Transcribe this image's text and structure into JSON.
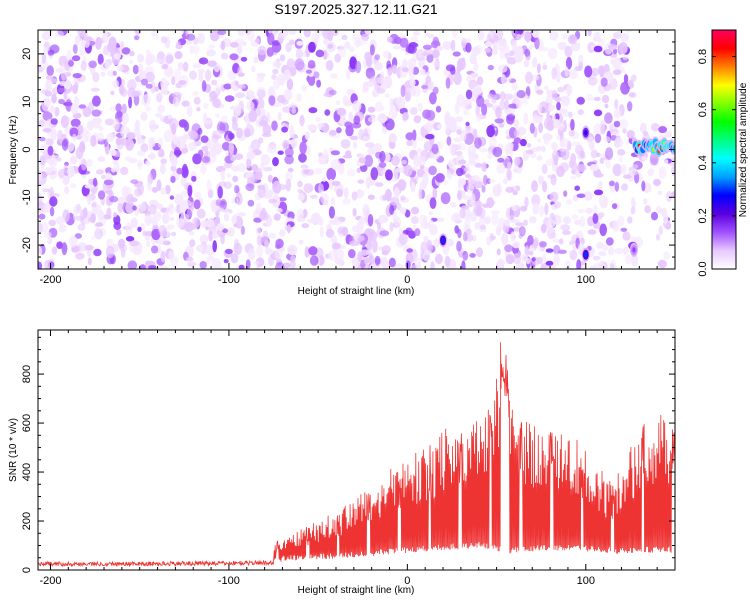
{
  "figure_title": "S197.2025.327.12.11.G21",
  "chart_data": [
    {
      "type": "heatmap",
      "title": "S197.2025.327.12.11.G21",
      "xlabel": "Height of straight line (km)",
      "ylabel": "Frequency (Hz)",
      "xlim": [
        -207,
        150
      ],
      "ylim": [
        -25,
        25
      ],
      "x_ticks": [
        -200,
        -100,
        0,
        100
      ],
      "y_ticks": [
        -20,
        -10,
        0,
        10,
        20
      ],
      "x_tick_labels": [
        "-200",
        "-100",
        "0",
        "100"
      ],
      "y_tick_labels": [
        "-20",
        "-10",
        "0",
        "10",
        "20"
      ],
      "grid": false,
      "colorbar": {
        "label": "Normalized spectral amplitude",
        "range": [
          0.0,
          0.9
        ],
        "ticks": [
          0.0,
          0.2,
          0.4,
          0.6,
          0.8
        ],
        "tick_labels": [
          "0.0",
          "0.2",
          "0.4",
          "0.6",
          "0.8"
        ],
        "colormap": [
          "#ffffff",
          "#e8c8ff",
          "#a050ff",
          "#5a00e0",
          "#0000ff",
          "#00a0ff",
          "#00ffff",
          "#00ff80",
          "#00ff00",
          "#80ff00",
          "#ffff00",
          "#ff8000",
          "#ff0000",
          "#ff0060"
        ]
      },
      "features": [
        {
          "name": "vertical stripe near 20 km",
          "x": 20,
          "y_range": [
            -25,
            25
          ],
          "level": 0.0
        },
        {
          "name": "vertical stripe near 100 km",
          "x": 100,
          "y_range": [
            -25,
            25
          ],
          "level": 0.0
        },
        {
          "name": "vertical stripe near -62 km",
          "x": -62,
          "y_range": [
            -25,
            25
          ],
          "level": 0.05
        },
        {
          "name": "hotspot",
          "x": 20,
          "y": -19,
          "level": 0.3
        },
        {
          "name": "hotspot",
          "x": 100,
          "y": -22,
          "level": 0.3
        },
        {
          "name": "hotspot",
          "x": 100,
          "y": 3.5,
          "level": 0.25
        },
        {
          "name": "hotspot",
          "x": 127,
          "y": -21,
          "level": 0.15
        },
        {
          "name": "signal band",
          "x_range": [
            128,
            150
          ],
          "y": 0.5,
          "level": 0.85
        },
        {
          "name": "empty region above signal",
          "x_range": [
            128,
            150
          ],
          "y_range": [
            5,
            25
          ],
          "level": 0.0
        }
      ]
    },
    {
      "type": "line",
      "xlabel": "Height of straight line (km)",
      "ylabel": "SNR (10 * v/v)",
      "xlim": [
        -207,
        150
      ],
      "ylim": [
        0,
        980
      ],
      "x_ticks": [
        -200,
        -100,
        0,
        100
      ],
      "y_ticks": [
        0,
        200,
        400,
        600,
        800
      ],
      "x_tick_labels": [
        "-200",
        "-100",
        "0",
        "100"
      ],
      "y_tick_labels": [
        "0",
        "200",
        "400",
        "600",
        "800"
      ],
      "grid": false,
      "series": [
        {
          "color": "#ee3333",
          "baseline": {
            "x": [
              -207,
              -150,
              -100,
              -75,
              -60,
              -40,
              -20,
              0,
              20,
              40,
              50,
              55,
              60,
              80,
              100,
              110,
              120,
              130,
              140,
              150
            ],
            "y": [
              25,
              25,
              28,
              30,
              40,
              45,
              55,
              70,
              80,
              90,
              80,
              60,
              70,
              80,
              75,
              70,
              65,
              70,
              70,
              70
            ]
          },
          "envelope": {
            "x": [
              -207,
              -150,
              -100,
              -80,
              -75,
              -70,
              -60,
              -50,
              -40,
              -30,
              -20,
              -10,
              0,
              5,
              10,
              15,
              18,
              20,
              25,
              30,
              35,
              40,
              45,
              50,
              52,
              54,
              56,
              58,
              60,
              65,
              70,
              80,
              90,
              95,
              100,
              105,
              110,
              115,
              120,
              125,
              130,
              135,
              140,
              145,
              150
            ],
            "y": [
              30,
              35,
              40,
              45,
              110,
              140,
              170,
              200,
              240,
              300,
              340,
              420,
              440,
              480,
              500,
              530,
              560,
              590,
              600,
              620,
              640,
              630,
              670,
              840,
              950,
              960,
              910,
              680,
              620,
              620,
              600,
              580,
              560,
              540,
              500,
              460,
              400,
              360,
              430,
              500,
              580,
              620,
              630,
              640,
              650
            ]
          }
        }
      ]
    }
  ]
}
